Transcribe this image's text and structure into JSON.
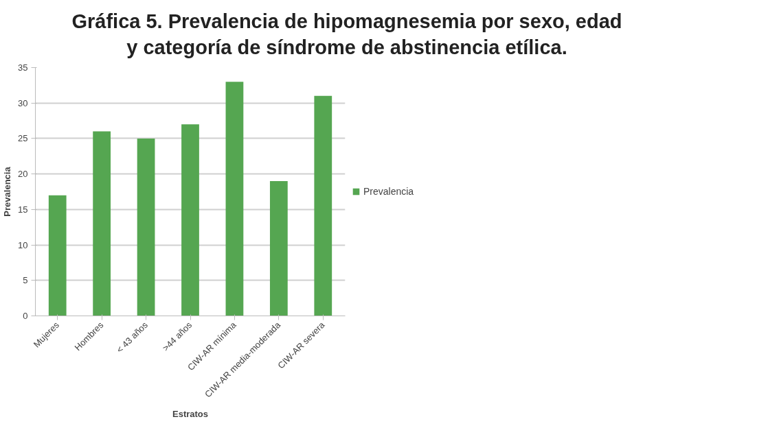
{
  "chart_data": {
    "type": "bar",
    "title": "Gráfica 5. Prevalencia de hipomagnesemia por sexo, edad y categoría de síndrome de abstinencia etílica.",
    "xlabel": "Estratos",
    "ylabel": "Prevalencia",
    "categories": [
      "Mujeres",
      "Hombres",
      "< 43 años",
      ">44 años",
      "CIW-AR mínima",
      "CIW-AR media-moderada",
      "CIW-AR severa"
    ],
    "series": [
      {
        "name": "Prevalencia",
        "color": "#55a651",
        "values": [
          17,
          26,
          25,
          27,
          33,
          19,
          31
        ]
      }
    ],
    "ylim": [
      0,
      35
    ],
    "yticks": [
      0,
      5,
      10,
      15,
      20,
      25,
      30,
      35
    ],
    "grid": "y",
    "legend": "right"
  }
}
